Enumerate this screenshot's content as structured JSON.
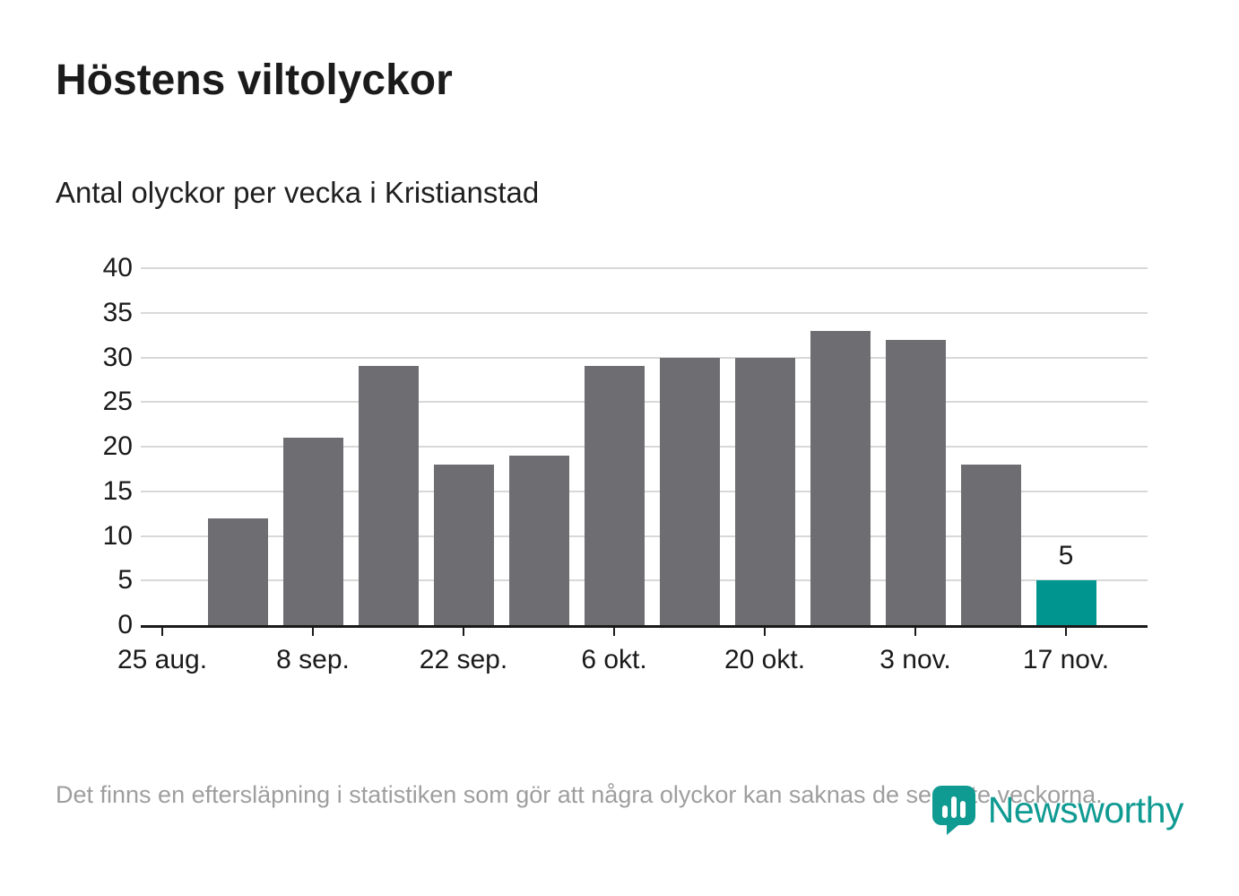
{
  "page": {
    "title": "Höstens viltolyckor",
    "subtitle": "Antal olyckor per vecka i Kristianstad",
    "footnote": "Det finns en eftersläpning i statistiken som gör att några olyckor kan saknas de senaste veckorna.",
    "brand": "Newsworthy"
  },
  "colors": {
    "bar": "#6e6e72",
    "highlight": "#00968f",
    "grid": "#d8d8d8",
    "axis": "#1a1a1a",
    "text": "#1a1a1a",
    "muted": "#9e9e9e",
    "brand": "#0f9a92"
  },
  "chart_data": {
    "type": "bar",
    "title": "Höstens viltolyckor",
    "subtitle": "Antal olyckor per vecka i Kristianstad",
    "values": [
      12,
      21,
      29,
      18,
      19,
      29,
      30,
      30,
      33,
      32,
      18,
      5
    ],
    "highlight_index": 11,
    "highlight_label": "5",
    "ylim": [
      0,
      40
    ],
    "yticks": [
      0,
      5,
      10,
      15,
      20,
      25,
      30,
      35,
      40
    ],
    "xtick_labels": [
      "25 aug.",
      "8 sep.",
      "22 sep.",
      "6 okt.",
      "20 okt.",
      "3 nov.",
      "17 nov."
    ],
    "xticks_every_n_slots": 2,
    "xlabel": "",
    "ylabel": "",
    "grid": "horizontal",
    "legend": "none"
  }
}
